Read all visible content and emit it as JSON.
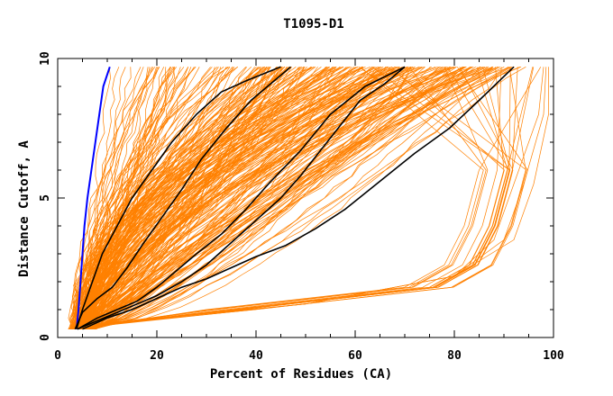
{
  "chart_data": {
    "type": "line",
    "title": "T1095-D1",
    "xlabel": "Percent of Residues (CA)",
    "ylabel": "Distance Cutoff, A",
    "xlim": [
      0,
      100
    ],
    "ylim": [
      0,
      10
    ],
    "x_ticks": [
      "0",
      "20",
      "40",
      "60",
      "80",
      "100"
    ],
    "y_ticks": [
      "0",
      "5",
      "10"
    ],
    "grid": false,
    "colors": {
      "background": "#ffffff",
      "bulk": "#ff8000",
      "highlight": "#0000ff",
      "reference": "#000000"
    },
    "series": [
      {
        "role": "highlight",
        "color": "#0000ff",
        "points": [
          [
            3.8,
            0.3
          ],
          [
            4.2,
            1.0
          ],
          [
            4.6,
            2.0
          ],
          [
            5.0,
            3.0
          ],
          [
            5.4,
            4.0
          ],
          [
            6.0,
            5.0
          ],
          [
            6.8,
            6.0
          ],
          [
            7.6,
            7.0
          ],
          [
            8.4,
            8.0
          ],
          [
            9.2,
            9.0
          ],
          [
            10.5,
            9.7
          ]
        ]
      },
      {
        "role": "reference",
        "color": "#000000",
        "points": [
          [
            3.5,
            0.3
          ],
          [
            5,
            0.9
          ],
          [
            8,
            1.4
          ],
          [
            11,
            1.8
          ],
          [
            14,
            2.5
          ],
          [
            17,
            3.3
          ],
          [
            21,
            4.3
          ],
          [
            25,
            5.3
          ],
          [
            29,
            6.4
          ],
          [
            34,
            7.5
          ],
          [
            39,
            8.5
          ],
          [
            43,
            9.1
          ],
          [
            47,
            9.7
          ]
        ]
      },
      {
        "role": "reference",
        "color": "#000000",
        "points": [
          [
            4,
            0.3
          ],
          [
            8,
            0.7
          ],
          [
            12,
            1.0
          ],
          [
            16,
            1.3
          ],
          [
            20,
            1.8
          ],
          [
            24,
            2.4
          ],
          [
            28,
            3.0
          ],
          [
            33,
            3.7
          ],
          [
            38,
            4.6
          ],
          [
            43,
            5.6
          ],
          [
            49,
            6.7
          ],
          [
            55,
            8.0
          ],
          [
            62,
            9.0
          ],
          [
            70,
            9.7
          ]
        ]
      },
      {
        "role": "reference",
        "color": "#000000",
        "points": [
          [
            5,
            0.3
          ],
          [
            10,
            0.7
          ],
          [
            15,
            1.0
          ],
          [
            20,
            1.4
          ],
          [
            25,
            1.8
          ],
          [
            30,
            2.1
          ],
          [
            35,
            2.5
          ],
          [
            40,
            2.9
          ],
          [
            46,
            3.3
          ],
          [
            52,
            3.9
          ],
          [
            58,
            4.6
          ],
          [
            65,
            5.6
          ],
          [
            72,
            6.6
          ],
          [
            79,
            7.5
          ],
          [
            85,
            8.5
          ],
          [
            92,
            9.7
          ]
        ]
      },
      {
        "role": "reference",
        "color": "#000000",
        "points": [
          [
            4,
            0.3
          ],
          [
            8,
            0.6
          ],
          [
            12,
            0.9
          ],
          [
            16,
            1.2
          ],
          [
            20,
            1.5
          ],
          [
            25,
            2.0
          ],
          [
            30,
            2.6
          ],
          [
            35,
            3.4
          ],
          [
            40,
            4.2
          ],
          [
            45,
            5.0
          ],
          [
            49,
            5.8
          ],
          [
            53,
            6.7
          ],
          [
            57,
            7.6
          ],
          [
            61,
            8.5
          ],
          [
            66,
            9.1
          ],
          [
            70,
            9.7
          ]
        ]
      },
      {
        "role": "reference",
        "color": "#000000",
        "points": [
          [
            3.8,
            0.3
          ],
          [
            5,
            1.0
          ],
          [
            7,
            2.0
          ],
          [
            9,
            3.0
          ],
          [
            12,
            4.0
          ],
          [
            15,
            5.0
          ],
          [
            19,
            6.0
          ],
          [
            23,
            7.0
          ],
          [
            28,
            8.0
          ],
          [
            33,
            8.8
          ],
          [
            38,
            9.2
          ],
          [
            45,
            9.7
          ]
        ]
      }
    ]
  }
}
